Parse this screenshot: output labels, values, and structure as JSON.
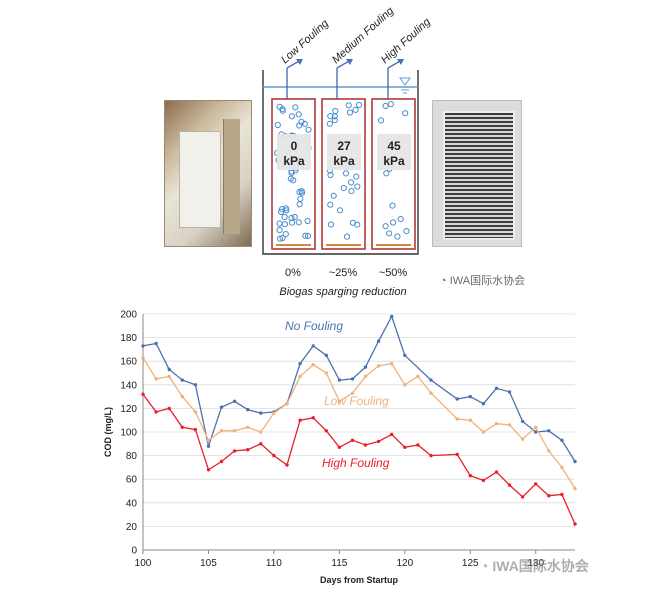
{
  "diagram": {
    "arrows": [
      "Low Fouling",
      "Medium Fouling",
      "High Fouling"
    ],
    "pressures": [
      {
        "value": "0",
        "unit": "kPa"
      },
      {
        "value": "27",
        "unit": "kPa"
      },
      {
        "value": "45",
        "unit": "kPa"
      }
    ],
    "reductions": [
      "0%",
      "~25%",
      "~50%"
    ],
    "caption": "Biogas sparging reduction"
  },
  "watermarks": {
    "top": "IWA国际水协会",
    "bottom": "IWA国际水协会"
  },
  "colors": {
    "no_fouling": "#4a72b0",
    "low_fouling": "#f0b27a",
    "high_fouling": "#e8202a",
    "tank_border": "#b03a3a",
    "bubble": "#4a8ed0"
  },
  "chart_data": {
    "type": "line",
    "xlabel": "Days from Startup",
    "ylabel": "COD (mg/L)",
    "xlim": [
      100,
      133
    ],
    "ylim": [
      0,
      200
    ],
    "xticks": [
      "100",
      "105",
      "110",
      "115",
      "120",
      "125",
      "130"
    ],
    "yticks": [
      "0",
      "20",
      "40",
      "60",
      "80",
      "100",
      "120",
      "140",
      "160",
      "180",
      "200"
    ],
    "grid": "horizontal",
    "series": [
      {
        "name": "No Fouling",
        "x": [
          100,
          101,
          102,
          103,
          104,
          105,
          106,
          107,
          108,
          109,
          110,
          111,
          112,
          113,
          114,
          115,
          116,
          117,
          118,
          119,
          120,
          122,
          124,
          125,
          126,
          127,
          128,
          129,
          130,
          131,
          132,
          133
        ],
        "y": [
          173,
          175,
          153,
          144,
          140,
          88,
          121,
          126,
          119,
          116,
          117,
          124,
          158,
          173,
          165,
          144,
          145,
          155,
          177,
          198,
          165,
          144,
          128,
          130,
          124,
          137,
          134,
          109,
          100,
          101,
          93,
          75
        ]
      },
      {
        "name": "Low Fouling",
        "x": [
          100,
          101,
          102,
          103,
          104,
          105,
          106,
          107,
          108,
          109,
          110,
          111,
          112,
          113,
          114,
          115,
          116,
          117,
          118,
          119,
          120,
          121,
          122,
          124,
          125,
          126,
          127,
          128,
          129,
          130,
          131,
          132,
          133
        ],
        "y": [
          163,
          145,
          147,
          130,
          117,
          93,
          101,
          101,
          104,
          100,
          116,
          124,
          147,
          157,
          150,
          126,
          133,
          147,
          156,
          158,
          140,
          147,
          133,
          111,
          110,
          100,
          107,
          106,
          94,
          104,
          84,
          70,
          52
        ]
      },
      {
        "name": "High Fouling",
        "x": [
          100,
          101,
          102,
          103,
          104,
          105,
          106,
          107,
          108,
          109,
          110,
          111,
          112,
          113,
          114,
          115,
          116,
          117,
          118,
          119,
          120,
          121,
          122,
          124,
          125,
          126,
          127,
          128,
          129,
          130,
          131,
          132,
          133
        ],
        "y": [
          132,
          117,
          120,
          104,
          102,
          68,
          75,
          84,
          85,
          90,
          80,
          72,
          110,
          112,
          101,
          87,
          93,
          89,
          92,
          98,
          87,
          89,
          80,
          81,
          63,
          59,
          66,
          55,
          45,
          56,
          46,
          47,
          22
        ]
      }
    ]
  }
}
